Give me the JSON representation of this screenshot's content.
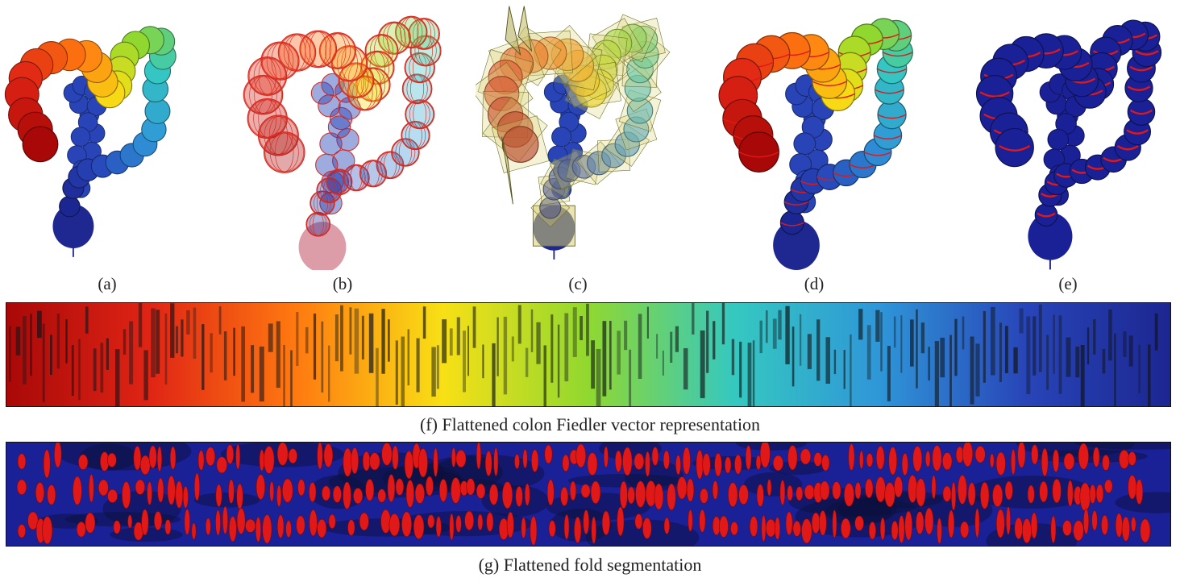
{
  "figure": {
    "panels": [
      {
        "id": "a",
        "label": "(a)",
        "style": "fiedler-colored"
      },
      {
        "id": "b",
        "label": "(b)",
        "style": "fiedler-wireframe-isocurves"
      },
      {
        "id": "c",
        "label": "(c)",
        "style": "cross-section-planes"
      },
      {
        "id": "d",
        "label": "(d)",
        "style": "fiedler-colored-with-fold-curves"
      },
      {
        "id": "e",
        "label": "(e)",
        "style": "fold-segmentation"
      }
    ],
    "strip_f": {
      "caption": "(f) Flattened colon Fiedler vector representation"
    },
    "strip_g": {
      "caption": "(g) Flattened fold segmentation"
    }
  },
  "colors": {
    "fiedler_ramp": [
      "#a80808",
      "#e02515",
      "#ff7a10",
      "#f8e015",
      "#90d830",
      "#35c8c0",
      "#2f96d8",
      "#2845b8",
      "#1c2690"
    ],
    "fold_red": "#e01818",
    "base_navy": "#1a2095",
    "wire_red": "#d82a20"
  }
}
